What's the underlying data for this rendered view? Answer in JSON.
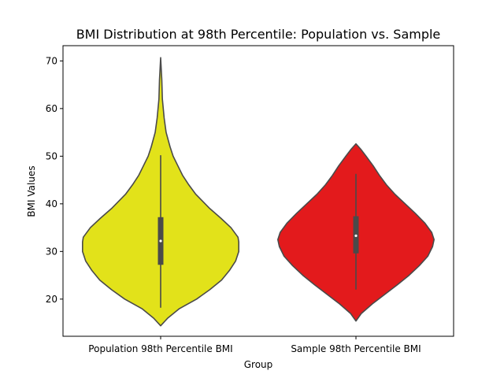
{
  "chart_data": {
    "type": "violin",
    "title": "BMI Distribution at 98th Percentile: Population vs. Sample",
    "xlabel": "Group",
    "ylabel": "BMI Values",
    "categories": [
      "Population 98th Percentile BMI",
      "Sample 98th Percentile BMI"
    ],
    "ylim": [
      12.2,
      73.2
    ],
    "yticks": [
      20,
      30,
      40,
      50,
      60,
      70
    ],
    "grid": false,
    "series": [
      {
        "fill": "#e2e21a",
        "box": {
          "whisker_low": 18.2,
          "q1": 27.2,
          "median": 32.2,
          "q3": 37.2,
          "whisker_high": 50.2
        },
        "range": [
          14.4,
          70.7
        ],
        "profile": [
          [
            14.4,
            0.0
          ],
          [
            16.0,
            0.09
          ],
          [
            18.0,
            0.24
          ],
          [
            20.0,
            0.46
          ],
          [
            22.0,
            0.63
          ],
          [
            24.0,
            0.78
          ],
          [
            26.0,
            0.88
          ],
          [
            28.0,
            0.96
          ],
          [
            30.0,
            1.0
          ],
          [
            32.0,
            1.0
          ],
          [
            33.0,
            0.99
          ],
          [
            35.0,
            0.9
          ],
          [
            37.0,
            0.77
          ],
          [
            39.0,
            0.63
          ],
          [
            42.0,
            0.45
          ],
          [
            44.0,
            0.36
          ],
          [
            46.0,
            0.28
          ],
          [
            48.0,
            0.22
          ],
          [
            50.0,
            0.16
          ],
          [
            52.0,
            0.12
          ],
          [
            55.0,
            0.07
          ],
          [
            58.0,
            0.045
          ],
          [
            62.0,
            0.022
          ],
          [
            66.0,
            0.015
          ],
          [
            70.7,
            0.0
          ]
        ]
      },
      {
        "fill": "#e31a1c",
        "box": {
          "whisker_low": 22.0,
          "q1": 29.6,
          "median": 33.3,
          "q3": 37.4,
          "whisker_high": 46.3
        },
        "range": [
          15.4,
          52.6
        ],
        "profile": [
          [
            15.4,
            0.0
          ],
          [
            17.0,
            0.07
          ],
          [
            19.0,
            0.21
          ],
          [
            21.0,
            0.37
          ],
          [
            23.0,
            0.53
          ],
          [
            25.0,
            0.68
          ],
          [
            27.0,
            0.81
          ],
          [
            29.0,
            0.92
          ],
          [
            31.0,
            0.98
          ],
          [
            32.5,
            1.0
          ],
          [
            34.0,
            0.97
          ],
          [
            36.0,
            0.88
          ],
          [
            38.0,
            0.76
          ],
          [
            40.0,
            0.63
          ],
          [
            42.0,
            0.5
          ],
          [
            44.0,
            0.39
          ],
          [
            46.0,
            0.3
          ],
          [
            48.0,
            0.22
          ],
          [
            50.0,
            0.13
          ],
          [
            51.5,
            0.06
          ],
          [
            52.6,
            0.0
          ]
        ]
      }
    ]
  }
}
